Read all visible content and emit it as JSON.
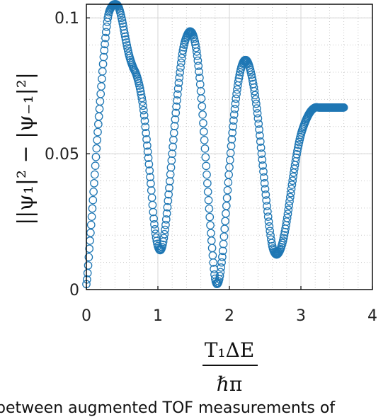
{
  "chart_data": {
    "type": "scatter",
    "title": "",
    "xlabel_num": "T₁ΔE",
    "xlabel_den": "ℏπ",
    "ylabel": "||ψ₁|² − |ψ₋₁|²|",
    "xlim": [
      0,
      4
    ],
    "ylim": [
      0,
      0.105
    ],
    "xticks": [
      0,
      1,
      2,
      3,
      4
    ],
    "xtick_labels": [
      "0",
      "1",
      "2",
      "3",
      "4"
    ],
    "yticks": [
      0,
      0.05,
      0.1
    ],
    "ytick_labels": [
      "0",
      "0.05",
      "0.1"
    ],
    "grid": true,
    "marker": "open-circle",
    "color": "#1f77b4",
    "series": [
      {
        "x": [
          0.0,
          0.05,
          0.1,
          0.15,
          0.2,
          0.25,
          0.3,
          0.35,
          0.4,
          0.45,
          0.5,
          0.55,
          0.6,
          0.65,
          0.7,
          0.75,
          0.8,
          0.85,
          0.9,
          0.95,
          1.0,
          1.05,
          1.1,
          1.15,
          1.2,
          1.25,
          1.3,
          1.35,
          1.4,
          1.45,
          1.5,
          1.55,
          1.6,
          1.65,
          1.7,
          1.75,
          1.8,
          1.85,
          1.9,
          1.95,
          2.0,
          2.05,
          2.1,
          2.15,
          2.2,
          2.25,
          2.3,
          2.35,
          2.4,
          2.45,
          2.5,
          2.55,
          2.6,
          2.65,
          2.7,
          2.75,
          2.8,
          2.85,
          2.9,
          2.95,
          3.0,
          3.05,
          3.1,
          3.15,
          3.2,
          3.25,
          3.3,
          3.35,
          3.4,
          3.45,
          3.5,
          3.55,
          3.6
        ],
        "y": [
          0.002,
          0.018,
          0.036,
          0.055,
          0.072,
          0.088,
          0.1,
          0.104,
          0.105,
          0.104,
          0.099,
          0.092,
          0.086,
          0.082,
          0.079,
          0.074,
          0.066,
          0.053,
          0.039,
          0.024,
          0.016,
          0.015,
          0.022,
          0.035,
          0.05,
          0.065,
          0.078,
          0.088,
          0.093,
          0.095,
          0.093,
          0.086,
          0.073,
          0.055,
          0.036,
          0.018,
          0.004,
          0.003,
          0.012,
          0.028,
          0.045,
          0.06,
          0.072,
          0.08,
          0.084,
          0.084,
          0.08,
          0.073,
          0.063,
          0.05,
          0.037,
          0.025,
          0.016,
          0.013,
          0.014,
          0.018,
          0.025,
          0.034,
          0.043,
          0.051,
          0.057,
          0.061,
          0.064,
          0.066,
          0.067,
          0.067,
          0.067,
          0.067,
          0.067,
          0.067,
          0.067,
          0.067,
          0.067
        ]
      }
    ]
  },
  "caption": "between augmented TOF measurements of"
}
